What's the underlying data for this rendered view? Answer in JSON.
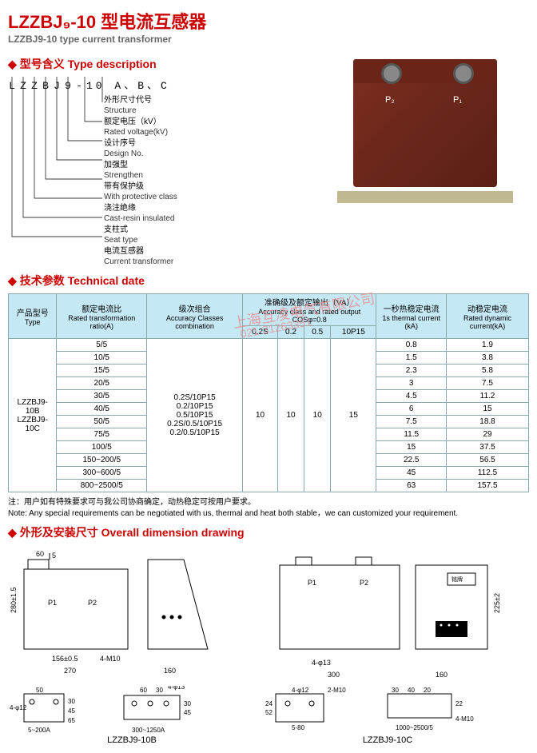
{
  "title": {
    "cn": "LZZBJ₉-10 型电流互感器",
    "en": "LZZBJ9-10  type current transformer"
  },
  "sections": {
    "type_desc": "型号含义 Type description",
    "tech": "技术参数 Technical date",
    "dim": "外形及安装尺寸 Overall dimension drawing"
  },
  "code": {
    "letters": [
      "L",
      "Z",
      "Z",
      "B",
      "J",
      "9",
      "-",
      "10",
      "A、B、C"
    ]
  },
  "desc_items": [
    {
      "cn": "外形尺寸代号",
      "en": "Structure"
    },
    {
      "cn": "额定电压（kV）",
      "en": "Rated voltage(kV)"
    },
    {
      "cn": "设计序号",
      "en": "Design No."
    },
    {
      "cn": "加强型",
      "en": "Strengthen"
    },
    {
      "cn": "带有保护级",
      "en": "With protective class"
    },
    {
      "cn": "浇注绝缘",
      "en": "Cast-resin insulated"
    },
    {
      "cn": "支柱式",
      "en": "Seat type"
    },
    {
      "cn": "电流互感器",
      "en": "Current transformer"
    }
  ],
  "product_labels": {
    "p1": "P₁",
    "p2": "P₂"
  },
  "spec_table": {
    "headers": {
      "type": {
        "cn": "产品型号",
        "en": "Type"
      },
      "ratio": {
        "cn": "额定电流比",
        "en": "Rated transformation ratio(A)"
      },
      "accuracy": {
        "cn": "级次组合",
        "en": "Accuracy Classes combination"
      },
      "output": {
        "cn": "准确级及额定输出（VA）",
        "en": "Accuracy class and rated output COSφ=0.8"
      },
      "thermal": {
        "cn": "一秒热稳定电流",
        "en": "1s thermal current (kA)"
      },
      "dynamic": {
        "cn": "动稳定电流",
        "en": "Rated dynamic current(kA)"
      },
      "output_sub": [
        "0.2S",
        "0.2",
        "0.5",
        "10P15"
      ]
    },
    "type_models": "LZZBJ9-10B\nLZZBJ9-10C",
    "accuracy_list": "0.2S/10P15\n0.2/10P15\n0.5/10P15\n0.2S/0.5/10P15\n0.2/0.5/10P15",
    "output_vals": {
      "c1": "10",
      "c2": "10",
      "c3": "10",
      "c4": "15"
    },
    "rows": [
      {
        "ratio": "5/5",
        "th": "0.8",
        "dy": "1.9"
      },
      {
        "ratio": "10/5",
        "th": "1.5",
        "dy": "3.8"
      },
      {
        "ratio": "15/5",
        "th": "2.3",
        "dy": "5.8"
      },
      {
        "ratio": "20/5",
        "th": "3",
        "dy": "7.5"
      },
      {
        "ratio": "30/5",
        "th": "4.5",
        "dy": "11.2"
      },
      {
        "ratio": "40/5",
        "th": "6",
        "dy": "15"
      },
      {
        "ratio": "50/5",
        "th": "7.5",
        "dy": "18.8"
      },
      {
        "ratio": "75/5",
        "th": "11.5",
        "dy": "29"
      },
      {
        "ratio": "100/5",
        "th": "15",
        "dy": "37.5"
      },
      {
        "ratio": "150~200/5",
        "th": "22.5",
        "dy": "56.5"
      },
      {
        "ratio": "300~600/5",
        "th": "45",
        "dy": "112.5"
      },
      {
        "ratio": "800~2500/5",
        "th": "63",
        "dy": "157.5"
      }
    ]
  },
  "note": {
    "cn": "注：用户如有特殊要求可与我公司协商确定，动热稳定可按用户要求。",
    "en": "Note: Any special requirements can be negotiated with us, thermal and heat both stable，we can customized your requirement."
  },
  "watermark": {
    "line1": "上海互凌电气有限公司",
    "line2": "021-31263351"
  },
  "drawings": {
    "label_b": "LZZBJ9-10B",
    "label_c": "LZZBJ9-10C",
    "amp_a": "5~200A",
    "amp_b": "300~1250A",
    "amp_c": "1000~2500/5"
  },
  "dims": {
    "d60": "60",
    "d5": "5",
    "d280": "280±1.5",
    "d156": "156±0.5",
    "d270": "270",
    "d160": "160",
    "d50": "50",
    "d42": "4-φ12",
    "d30": "30",
    "d45": "45",
    "d65": "65",
    "d300": "300",
    "d225": "225±2",
    "d4_13": "4-φ13",
    "d4m10": "4-M10",
    "d2m10": "2-M10",
    "d24": "24",
    "d52": "52",
    "d22": "22",
    "d40": "40",
    "d20": "20",
    "d5_80": "5-80"
  },
  "colors": {
    "accent": "#c00",
    "table_head": "#c5e8f5",
    "table_border": "#8aa",
    "transformer": "#6a2518"
  }
}
